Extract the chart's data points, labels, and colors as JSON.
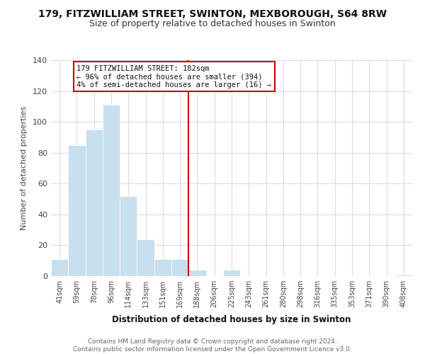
{
  "title": "179, FITZWILLIAM STREET, SWINTON, MEXBOROUGH, S64 8RW",
  "subtitle": "Size of property relative to detached houses in Swinton",
  "xlabel": "Distribution of detached houses by size in Swinton",
  "ylabel": "Number of detached properties",
  "bar_color": "#c8dff0",
  "bar_edge_color": "#ffffff",
  "bins": [
    "41sqm",
    "59sqm",
    "78sqm",
    "96sqm",
    "114sqm",
    "133sqm",
    "151sqm",
    "169sqm",
    "188sqm",
    "206sqm",
    "225sqm",
    "243sqm",
    "261sqm",
    "280sqm",
    "298sqm",
    "316sqm",
    "335sqm",
    "353sqm",
    "371sqm",
    "390sqm",
    "408sqm"
  ],
  "values": [
    11,
    85,
    95,
    111,
    52,
    24,
    11,
    11,
    4,
    0,
    4,
    0,
    0,
    0,
    0,
    0,
    0,
    0,
    0,
    0,
    1
  ],
  "vline_x_idx": 8,
  "vline_color": "#cc0000",
  "ann_line1": "179 FITZWILLIAM STREET: 182sqm",
  "ann_line2": "← 96% of detached houses are smaller (394)",
  "ann_line3": "4% of semi-detached houses are larger (16) →",
  "annotation_box_edgecolor": "#cc0000",
  "annotation_box_facecolor": "#ffffff",
  "ylim": [
    0,
    140
  ],
  "yticks": [
    0,
    20,
    40,
    60,
    80,
    100,
    120,
    140
  ],
  "footer_text": "Contains HM Land Registry data © Crown copyright and database right 2024.\nContains public sector information licensed under the Open Government Licence v3.0.",
  "background_color": "#ffffff",
  "grid_color": "#d4dde6"
}
